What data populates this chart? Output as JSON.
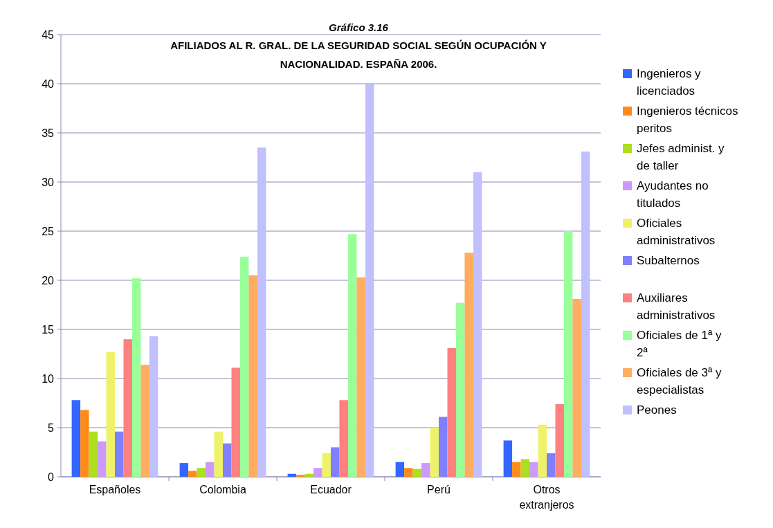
{
  "chart_data": {
    "type": "bar",
    "title": "Gráfico 3.16",
    "subtitle": "AFILIADOS AL R. GRAL. DE LA SEGURIDAD SOCIAL SEGÚN OCUPACIÓN Y NACIONALIDAD. ESPAÑA 2006.",
    "categories": [
      "Españoles",
      "Colombia",
      "Ecuador",
      "Perú",
      "Otros extranjeros"
    ],
    "series": [
      {
        "name": "Ingenieros y licenciados",
        "color": "#3366ff",
        "values": [
          7.8,
          1.4,
          0.3,
          1.5,
          3.7
        ]
      },
      {
        "name": "Ingenieros técnicos peritos",
        "color": "#ff8c1a",
        "values": [
          6.8,
          0.6,
          0.2,
          0.9,
          1.5
        ]
      },
      {
        "name": "Jefes administ. y de taller",
        "color": "#addf1f",
        "values": [
          4.6,
          0.9,
          0.3,
          0.8,
          1.8
        ]
      },
      {
        "name": "Ayudantes no titulados",
        "color": "#cc99ff",
        "values": [
          3.6,
          1.5,
          0.9,
          1.4,
          1.5
        ]
      },
      {
        "name": "Oficiales administrativos",
        "color": "#eef26a",
        "values": [
          12.7,
          4.6,
          2.4,
          5.0,
          5.3
        ]
      },
      {
        "name": "Subalternos",
        "color": "#8080ff",
        "values": [
          4.6,
          3.4,
          3.0,
          6.1,
          2.4
        ]
      },
      {
        "name": "Auxiliares administrativos",
        "color": "#ff8080",
        "values": [
          14.0,
          11.1,
          7.8,
          13.1,
          7.4
        ]
      },
      {
        "name": "Oficiales de 1ª y 2ª",
        "color": "#99ff99",
        "values": [
          20.2,
          22.4,
          24.7,
          17.7,
          25.0
        ]
      },
      {
        "name": "Oficiales de 3ª y especialistas",
        "color": "#ffad60",
        "values": [
          11.4,
          20.5,
          20.3,
          22.8,
          18.1
        ]
      },
      {
        "name": "Peones",
        "color": "#c0c0ff",
        "values": [
          14.3,
          33.5,
          40.0,
          31.0,
          33.1
        ]
      }
    ],
    "ylim": [
      0,
      45
    ],
    "yticks": [
      0,
      5,
      10,
      15,
      20,
      25,
      30,
      35,
      40,
      45
    ],
    "grid": "y",
    "legend": "right"
  }
}
